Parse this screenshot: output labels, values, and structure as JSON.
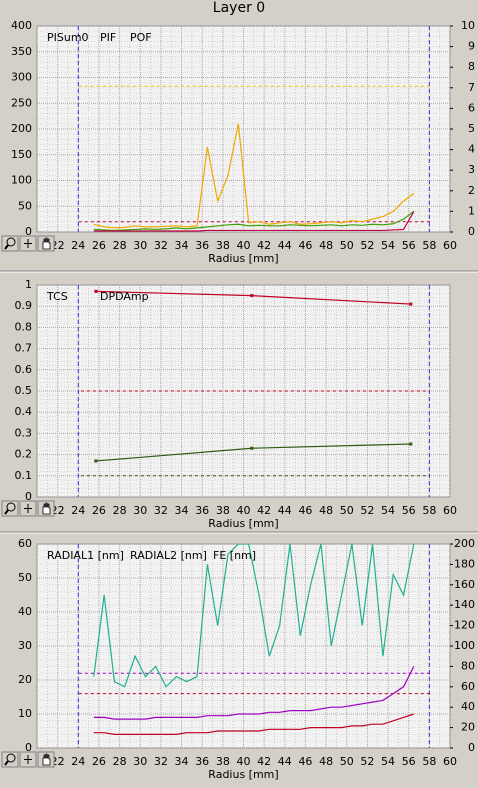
{
  "window": {
    "title": "Layer 0"
  },
  "chart_data": [
    {
      "type": "line",
      "xlabel": "Radius [mm]",
      "xlim": [
        20,
        60
      ],
      "xticks": [
        20,
        22,
        24,
        26,
        28,
        30,
        32,
        34,
        36,
        38,
        40,
        42,
        44,
        46,
        48,
        50,
        52,
        54,
        56,
        58,
        60
      ],
      "ylim": [
        0,
        400
      ],
      "yticks": [
        0,
        50,
        100,
        150,
        200,
        250,
        300,
        350,
        400
      ],
      "y2lim": [
        0,
        10
      ],
      "y2ticks": [
        0,
        1,
        2,
        3,
        4,
        5,
        6,
        7,
        8,
        9,
        10
      ],
      "grid": true,
      "x": [
        25.5,
        26.5,
        27.5,
        28.5,
        29.5,
        30.5,
        31.5,
        32.5,
        33.5,
        34.5,
        35.5,
        36.5,
        37.5,
        38.5,
        39.5,
        40.5,
        41.5,
        42.5,
        43.5,
        44.5,
        45.5,
        46.5,
        47.5,
        48.5,
        49.5,
        50.5,
        51.5,
        52.5,
        53.5,
        54.5,
        55.5,
        56.5
      ],
      "series": [
        {
          "name": "PISum0",
          "color": "#f0a800",
          "values": [
            15,
            10,
            8,
            9,
            12,
            10,
            10,
            11,
            12,
            10,
            12,
            165,
            60,
            110,
            210,
            18,
            20,
            15,
            18,
            20,
            15,
            16,
            18,
            20,
            18,
            22,
            20,
            25,
            30,
            40,
            60,
            75
          ]
        },
        {
          "name": "PIF",
          "color": "#3ca000",
          "values": [
            5,
            4,
            3,
            4,
            5,
            6,
            5,
            6,
            8,
            6,
            8,
            10,
            12,
            14,
            15,
            12,
            13,
            12,
            12,
            14,
            13,
            12,
            13,
            14,
            12,
            14,
            13,
            15,
            14,
            16,
            25,
            40
          ]
        },
        {
          "name": "POF",
          "color": "#c00040",
          "values": [
            2,
            2,
            2,
            2,
            2,
            2,
            2,
            2,
            2,
            2,
            2,
            3,
            3,
            3,
            3,
            3,
            3,
            3,
            3,
            3,
            3,
            3,
            3,
            3,
            3,
            3,
            3,
            3,
            3,
            4,
            5,
            40
          ]
        }
      ],
      "reference_lines": [
        {
          "value": 283,
          "color": "#f0c000"
        },
        {
          "value": 20,
          "color": "#c00040"
        }
      ],
      "vlines": [
        {
          "value": 24,
          "color": "#4030e0"
        },
        {
          "value": 58,
          "color": "#4030e0"
        }
      ]
    },
    {
      "type": "line",
      "xlabel": "Radius [mm]",
      "markers": true,
      "xlim": [
        20,
        60
      ],
      "xticks": [
        20,
        22,
        24,
        26,
        28,
        30,
        32,
        34,
        36,
        38,
        40,
        42,
        44,
        46,
        48,
        50,
        52,
        54,
        56,
        58,
        60
      ],
      "ylim": [
        0,
        1
      ],
      "yticks": [
        0,
        0.1,
        0.2,
        0.3,
        0.4,
        0.5,
        0.6,
        0.7,
        0.8,
        0.9,
        1
      ],
      "grid": true,
      "x": [
        25.7,
        40.8,
        56.2
      ],
      "series": [
        {
          "name": "TCS",
          "color": "#2e5a10",
          "values": [
            0.17,
            0.23,
            0.25
          ]
        },
        {
          "name": "DPDAmp",
          "color": "#c00020",
          "values": [
            0.97,
            0.95,
            0.91
          ]
        }
      ],
      "reference_lines": [
        {
          "value": 0.5,
          "color": "#c00020"
        },
        {
          "value": 0.1,
          "color": "#2e5a10"
        }
      ],
      "vlines": [
        {
          "value": 24,
          "color": "#4030e0"
        },
        {
          "value": 58,
          "color": "#4030e0"
        }
      ]
    },
    {
      "type": "line",
      "xlabel": "Radius [mm]",
      "xlim": [
        20,
        60
      ],
      "xticks": [
        20,
        22,
        24,
        26,
        28,
        30,
        32,
        34,
        36,
        38,
        40,
        42,
        44,
        46,
        48,
        50,
        52,
        54,
        56,
        58,
        60
      ],
      "ylim": [
        0,
        60
      ],
      "yticks": [
        0,
        10,
        20,
        30,
        40,
        50,
        60
      ],
      "y2lim": [
        0,
        200
      ],
      "y2ticks": [
        0,
        20,
        40,
        60,
        80,
        100,
        120,
        140,
        160,
        180,
        200
      ],
      "grid": true,
      "x": [
        25.5,
        26.5,
        27.5,
        28.5,
        29.5,
        30.5,
        31.5,
        32.5,
        33.5,
        34.5,
        35.5,
        36.5,
        37.5,
        38.5,
        39.5,
        40.5,
        41.5,
        42.5,
        43.5,
        44.5,
        45.5,
        46.5,
        47.5,
        48.5,
        49.5,
        50.5,
        51.5,
        52.5,
        53.5,
        54.5,
        55.5,
        56.5
      ],
      "series": [
        {
          "name": "RADIAL1 [nm]",
          "color": "#a000c0",
          "values": [
            9,
            9,
            8.5,
            8.5,
            8.5,
            8.5,
            9,
            9,
            9,
            9,
            9,
            9.5,
            9.5,
            9.5,
            10,
            10,
            10,
            10.5,
            10.5,
            11,
            11,
            11,
            11.5,
            12,
            12,
            12.5,
            13,
            13.5,
            14,
            16,
            18,
            24
          ]
        },
        {
          "name": "RADIAL2 [nm]",
          "color": "#c00020",
          "values": [
            4.5,
            4.5,
            4,
            4,
            4,
            4,
            4,
            4,
            4,
            4.5,
            4.5,
            4.5,
            5,
            5,
            5,
            5,
            5,
            5.5,
            5.5,
            5.5,
            5.5,
            6,
            6,
            6,
            6,
            6.5,
            6.5,
            7,
            7,
            8,
            9,
            10
          ]
        },
        {
          "name": "FE [nm]",
          "color": "#20b090",
          "axis": "y2",
          "values": [
            70,
            150,
            65,
            60,
            90,
            70,
            80,
            60,
            70,
            65,
            70,
            180,
            120,
            190,
            200,
            200,
            150,
            90,
            120,
            200,
            110,
            160,
            200,
            100,
            150,
            200,
            120,
            200,
            90,
            170,
            150,
            200
          ]
        }
      ],
      "reference_lines": [
        {
          "value": 16,
          "color": "#c00020"
        },
        {
          "value": 22,
          "color": "#a000c0"
        }
      ],
      "vlines": [
        {
          "value": 24,
          "color": "#4030e0"
        },
        {
          "value": 58,
          "color": "#4030e0"
        }
      ]
    }
  ]
}
